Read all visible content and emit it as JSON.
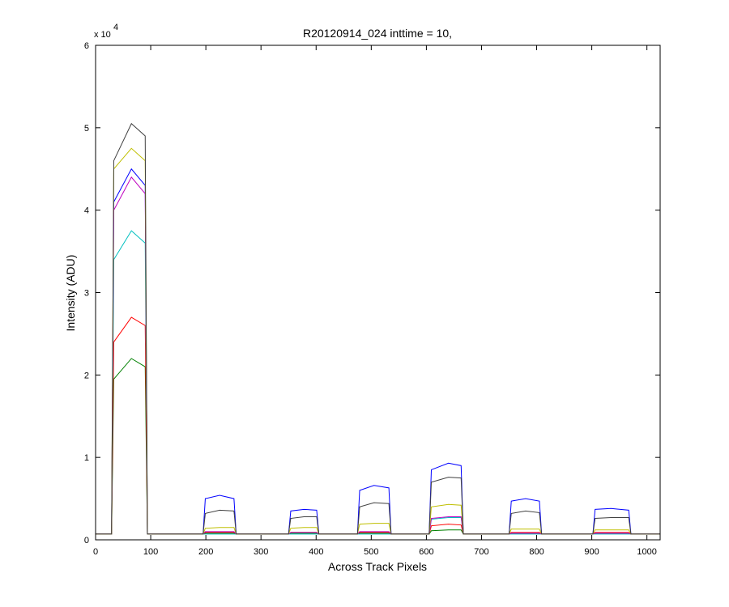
{
  "chart_data": {
    "type": "line",
    "title": "R20120914_024 inttime = 10,",
    "x_label": "Across Track Pixels",
    "y_label": "Intensity (ADU)",
    "y_multiplier": "x 10",
    "y_exponent": "4",
    "x": [
      0,
      29,
      33,
      65,
      90,
      94,
      195,
      199,
      225,
      251,
      255,
      350,
      354,
      378,
      401,
      405,
      475,
      479,
      505,
      532,
      536,
      605,
      609,
      640,
      663,
      667,
      750,
      754,
      780,
      805,
      809,
      902,
      906,
      935,
      967,
      971,
      1024
    ],
    "series": [
      {
        "color": "#0000ff",
        "values": [
          0.07,
          0.07,
          4.1,
          4.5,
          4.3,
          0.07,
          0.07,
          0.5,
          0.54,
          0.5,
          0.07,
          0.07,
          0.35,
          0.37,
          0.36,
          0.07,
          0.07,
          0.6,
          0.66,
          0.63,
          0.07,
          0.07,
          0.85,
          0.93,
          0.9,
          0.07,
          0.07,
          0.47,
          0.5,
          0.47,
          0.07,
          0.07,
          0.37,
          0.38,
          0.36,
          0.07,
          0.07
        ]
      },
      {
        "color": "#008000",
        "values": [
          0.07,
          0.07,
          1.95,
          2.2,
          2.1,
          0.07,
          0.07,
          0.08,
          0.08,
          0.08,
          0.07,
          0.07,
          0.08,
          0.08,
          0.08,
          0.07,
          0.07,
          0.08,
          0.08,
          0.08,
          0.07,
          0.07,
          0.11,
          0.12,
          0.12,
          0.07,
          0.07,
          0.08,
          0.08,
          0.08,
          0.07,
          0.07,
          0.08,
          0.08,
          0.08,
          0.07,
          0.07
        ]
      },
      {
        "color": "#ff0000",
        "values": [
          0.07,
          0.07,
          2.4,
          2.7,
          2.6,
          0.07,
          0.07,
          0.09,
          0.09,
          0.09,
          0.07,
          0.07,
          0.09,
          0.09,
          0.09,
          0.07,
          0.07,
          0.09,
          0.09,
          0.09,
          0.07,
          0.07,
          0.17,
          0.19,
          0.18,
          0.07,
          0.07,
          0.09,
          0.09,
          0.09,
          0.07,
          0.07,
          0.09,
          0.09,
          0.09,
          0.07,
          0.07
        ]
      },
      {
        "color": "#00bfbf",
        "values": [
          0.07,
          0.07,
          3.4,
          3.75,
          3.6,
          0.07,
          0.07,
          0.07,
          0.07,
          0.07,
          0.07,
          0.07,
          0.07,
          0.07,
          0.07,
          0.07,
          0.07,
          0.07,
          0.07,
          0.07,
          0.07,
          0.07,
          0.25,
          0.27,
          0.27,
          0.07,
          0.07,
          0.07,
          0.07,
          0.07,
          0.07,
          0.07,
          0.07,
          0.07,
          0.07,
          0.07,
          0.07
        ]
      },
      {
        "color": "#bf00bf",
        "values": [
          0.07,
          0.07,
          4.0,
          4.4,
          4.2,
          0.07,
          0.07,
          0.1,
          0.1,
          0.1,
          0.07,
          0.07,
          0.09,
          0.09,
          0.09,
          0.07,
          0.07,
          0.1,
          0.1,
          0.1,
          0.07,
          0.07,
          0.26,
          0.28,
          0.28,
          0.07,
          0.07,
          0.08,
          0.08,
          0.08,
          0.07,
          0.07,
          0.08,
          0.08,
          0.08,
          0.07,
          0.07
        ]
      },
      {
        "color": "#bfbf00",
        "values": [
          0.07,
          0.07,
          4.5,
          4.75,
          4.6,
          0.07,
          0.07,
          0.14,
          0.15,
          0.15,
          0.07,
          0.07,
          0.14,
          0.15,
          0.15,
          0.07,
          0.07,
          0.19,
          0.2,
          0.2,
          0.07,
          0.07,
          0.4,
          0.43,
          0.42,
          0.07,
          0.07,
          0.13,
          0.13,
          0.13,
          0.07,
          0.07,
          0.12,
          0.12,
          0.12,
          0.07,
          0.07
        ]
      },
      {
        "color": "#404040",
        "values": [
          0.07,
          0.07,
          4.6,
          5.05,
          4.9,
          0.07,
          0.07,
          0.32,
          0.36,
          0.35,
          0.07,
          0.07,
          0.26,
          0.28,
          0.28,
          0.07,
          0.07,
          0.4,
          0.45,
          0.44,
          0.07,
          0.07,
          0.7,
          0.76,
          0.75,
          0.07,
          0.07,
          0.32,
          0.35,
          0.33,
          0.07,
          0.07,
          0.26,
          0.27,
          0.27,
          0.07,
          0.07
        ]
      }
    ],
    "xlim": [
      0,
      1024
    ],
    "ylim": [
      0,
      6
    ],
    "xticks": [
      0,
      100,
      200,
      300,
      400,
      500,
      600,
      700,
      800,
      900,
      1000
    ],
    "yticks": [
      0,
      1,
      2,
      3,
      4,
      5,
      6
    ],
    "grid": false
  }
}
